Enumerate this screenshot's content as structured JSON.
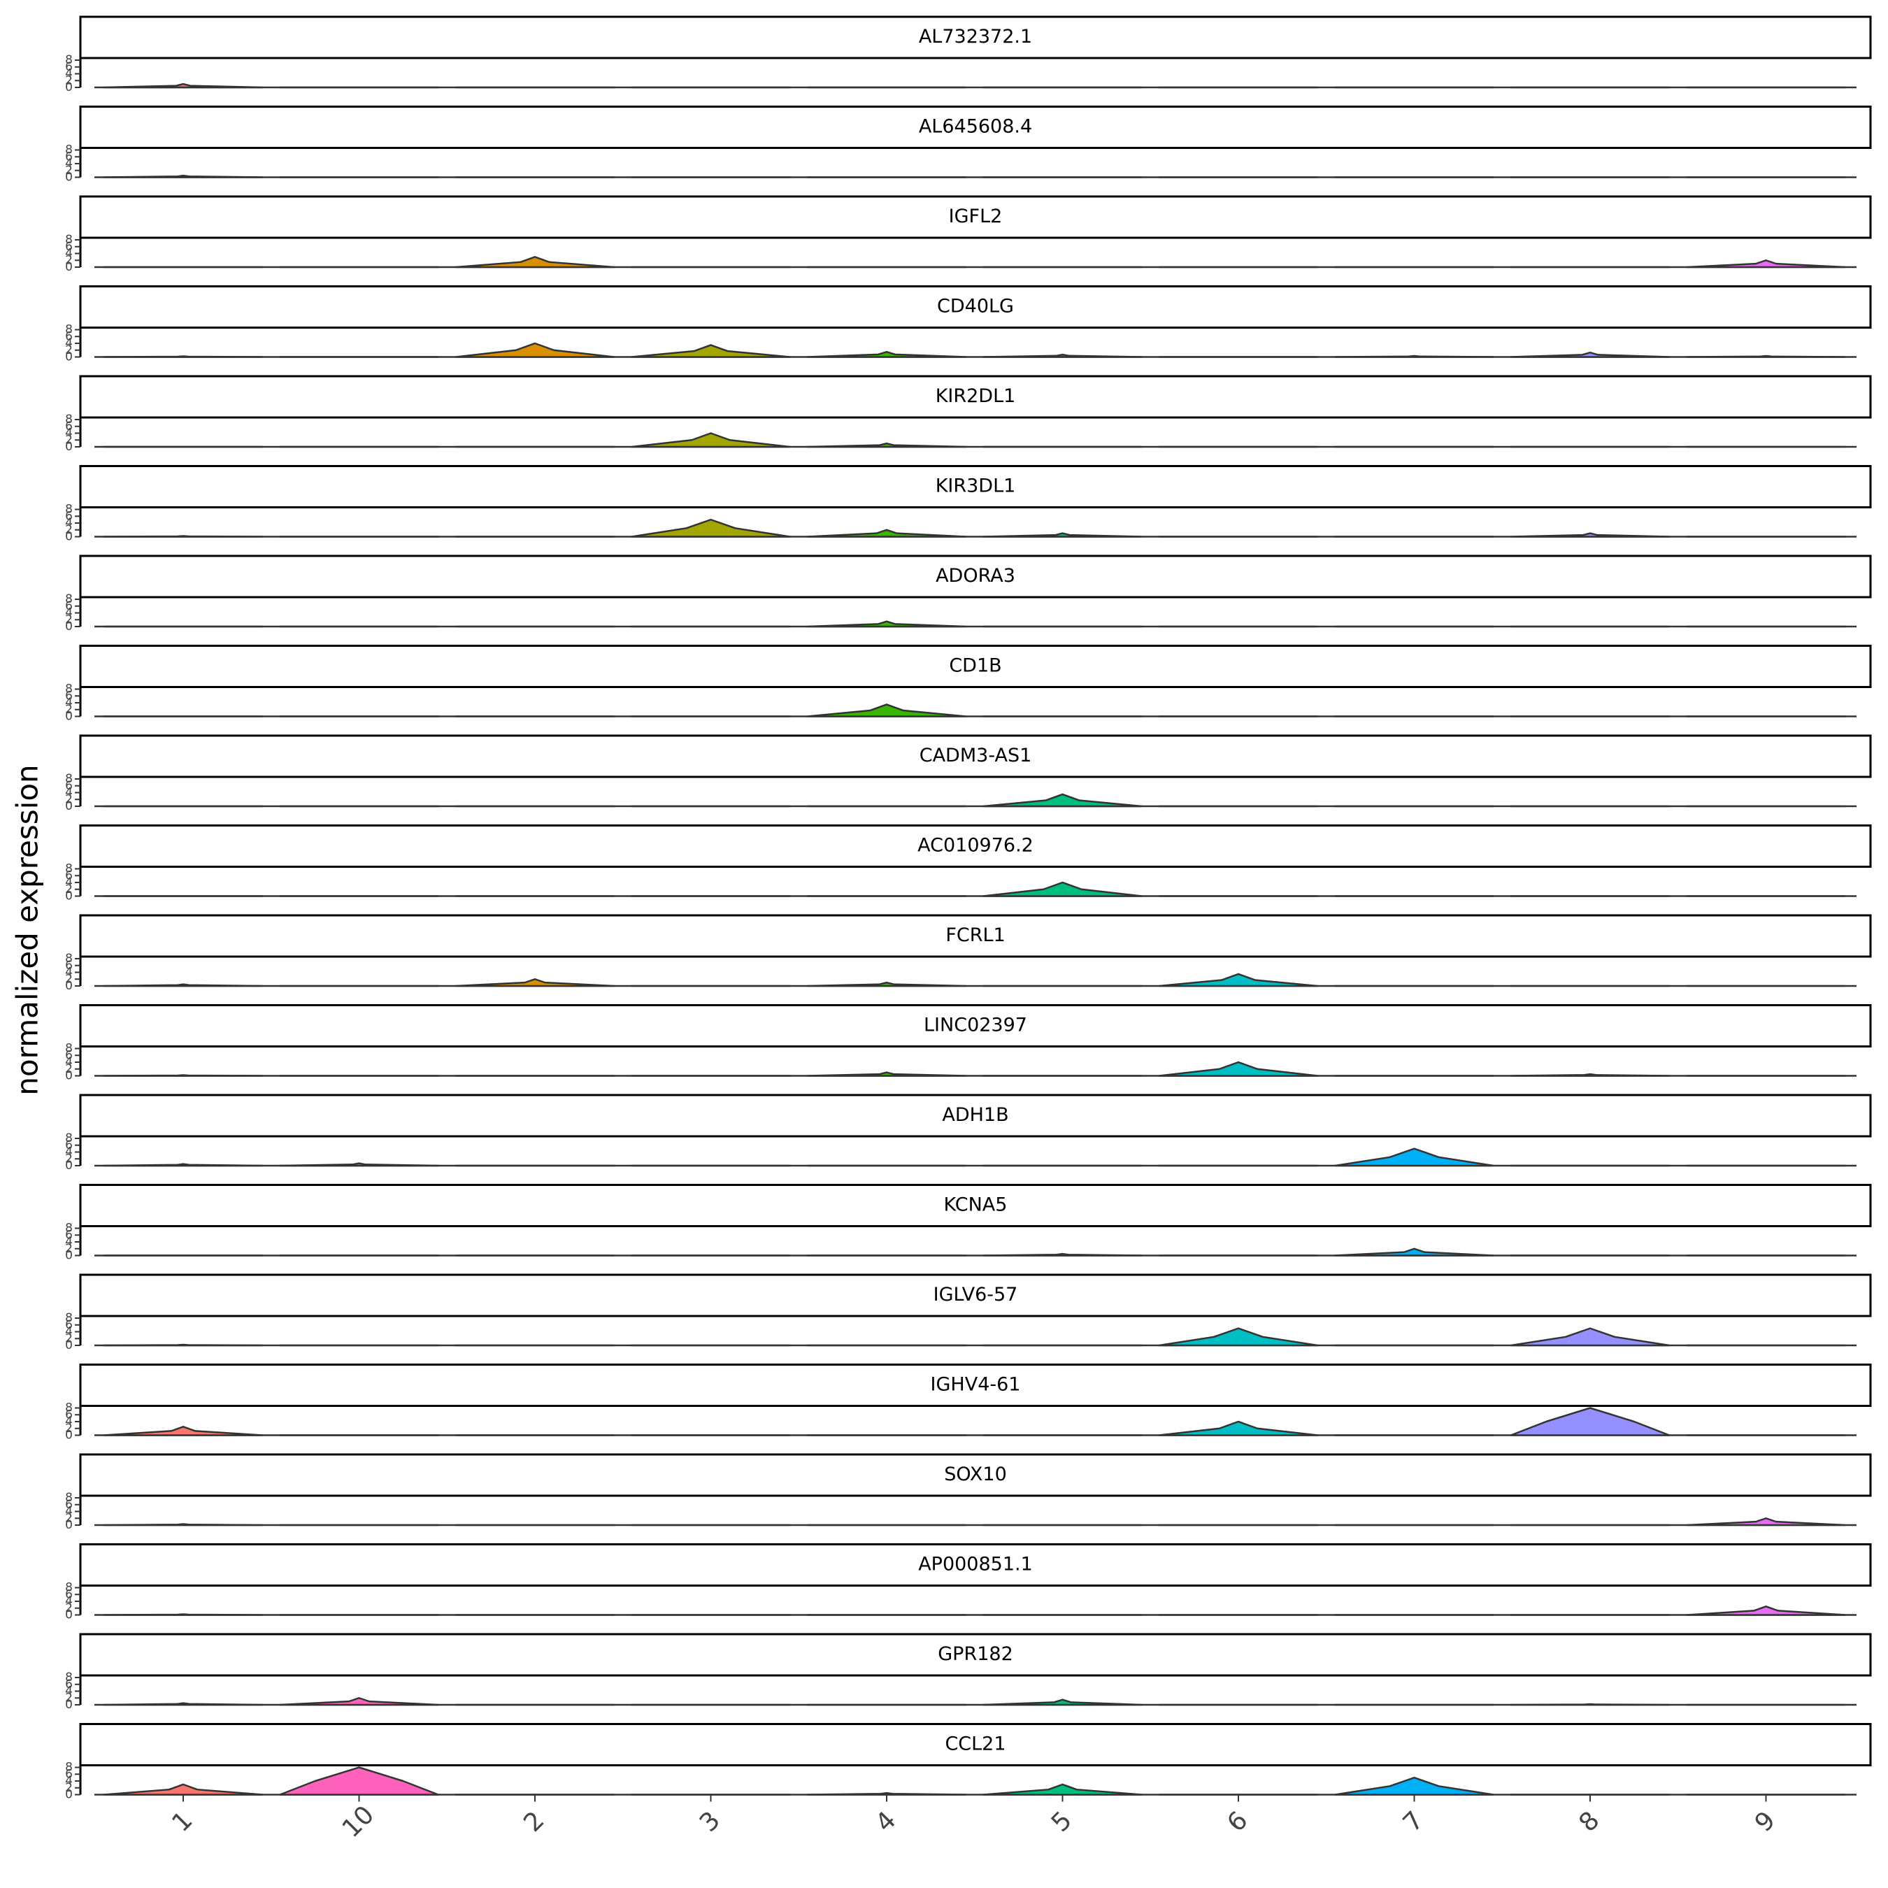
{
  "chart_data": {
    "type": "violin",
    "ylabel": "normalized expression",
    "categories": [
      "1",
      "10",
      "2",
      "3",
      "4",
      "5",
      "6",
      "7",
      "8",
      "9"
    ],
    "colors": [
      "#F8766D",
      "#FF62BC",
      "#D89000",
      "#A3A500",
      "#39B600",
      "#00BF7D",
      "#00BFC4",
      "#00B0F6",
      "#9590FF",
      "#E76BF3"
    ],
    "ylim": [
      0,
      8
    ],
    "yticks": [
      0,
      2,
      4,
      6,
      8
    ],
    "panels": [
      {
        "title": "AL732372.1",
        "values": [
          1,
          0,
          0,
          0,
          0,
          0,
          0,
          0,
          0,
          0
        ]
      },
      {
        "title": "AL645608.4",
        "values": [
          0.5,
          0,
          0,
          0,
          0,
          0,
          0,
          0,
          0,
          0
        ]
      },
      {
        "title": "IGFL2",
        "values": [
          0,
          0,
          3,
          0,
          0,
          0,
          0,
          0,
          0,
          2
        ]
      },
      {
        "title": "CD40LG",
        "values": [
          0.2,
          0,
          4,
          3.5,
          1.5,
          0.7,
          0,
          0.3,
          1.3,
          0.3
        ]
      },
      {
        "title": "KIR2DL1",
        "values": [
          0,
          0,
          0,
          4,
          1,
          0,
          0,
          0,
          0,
          0
        ]
      },
      {
        "title": "KIR3DL1",
        "values": [
          0.2,
          0,
          0,
          5,
          2,
          1,
          0,
          0,
          1,
          0
        ]
      },
      {
        "title": "ADORA3",
        "values": [
          0,
          0,
          0,
          0,
          1.5,
          0,
          0,
          0,
          0,
          0
        ]
      },
      {
        "title": "CD1B",
        "values": [
          0,
          0,
          0,
          0,
          3.5,
          0,
          0,
          0,
          0,
          0
        ]
      },
      {
        "title": "CADM3-AS1",
        "values": [
          0,
          0,
          0,
          0,
          0,
          3.5,
          0,
          0,
          0,
          0
        ]
      },
      {
        "title": "AC010976.2",
        "values": [
          0,
          0,
          0,
          0,
          0,
          4,
          0,
          0,
          0,
          0
        ]
      },
      {
        "title": "FCRL1",
        "values": [
          0.5,
          0,
          2,
          0,
          1,
          0,
          3.5,
          0,
          0,
          0
        ]
      },
      {
        "title": "LINC02397",
        "values": [
          0.2,
          0,
          0,
          0,
          1,
          0,
          4,
          0,
          0.5,
          0
        ]
      },
      {
        "title": "ADH1B",
        "values": [
          0.5,
          0.7,
          0,
          0,
          0,
          0,
          0,
          5,
          0,
          0
        ]
      },
      {
        "title": "KCNA5",
        "values": [
          0,
          0,
          0,
          0,
          0,
          0.5,
          0,
          2,
          0,
          0
        ]
      },
      {
        "title": "IGLV6-57",
        "values": [
          0.2,
          0,
          0,
          0,
          0,
          0,
          5,
          0,
          5,
          0
        ]
      },
      {
        "title": "IGHV4-61",
        "values": [
          2.5,
          0,
          0,
          0,
          0,
          0,
          4,
          0,
          8,
          0
        ]
      },
      {
        "title": "SOX10",
        "values": [
          0.3,
          0,
          0,
          0,
          0,
          0,
          0,
          0,
          0,
          2
        ]
      },
      {
        "title": "AP000851.1",
        "values": [
          0.2,
          0,
          0,
          0,
          0,
          0,
          0,
          0,
          0,
          2.5
        ]
      },
      {
        "title": "GPR182",
        "values": [
          0.5,
          2,
          0,
          0,
          0,
          1.5,
          0,
          0,
          0.2,
          0
        ]
      },
      {
        "title": "CCL21",
        "values": [
          3,
          8,
          0,
          0,
          0.5,
          3,
          0,
          5,
          0,
          0
        ]
      }
    ]
  }
}
